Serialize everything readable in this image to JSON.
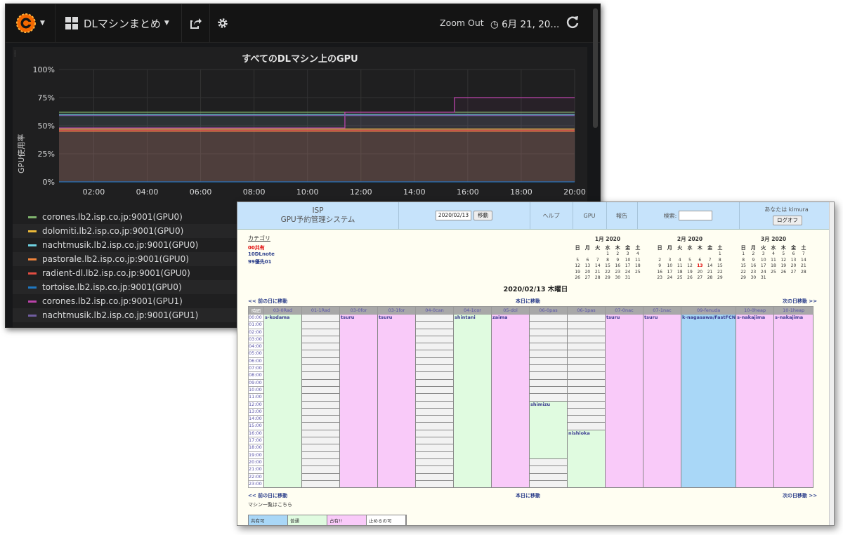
{
  "grafana": {
    "dashboard_title": "DLマシンまとめ",
    "zoom_out": "Zoom Out",
    "time_range": "6月 21, 20...",
    "icons": [
      "grafana-logo-icon",
      "dashboard-grid-icon",
      "share-icon",
      "gear-icon",
      "clock-icon",
      "refresh-icon"
    ],
    "panel": {
      "title": "すべてのDLマシン上のGPU",
      "ylabel": "GPU使用率"
    },
    "legend": [
      {
        "label": "corones.lb2.isp.co.jp:9001(GPU0)",
        "color": "#7eb26d"
      },
      {
        "label": "dolomiti.lb2.isp.co.jp:9001(GPU0)",
        "color": "#eab839"
      },
      {
        "label": "nachtmusik.lb2.isp.co.jp:9001(GPU0)",
        "color": "#6ed0e0"
      },
      {
        "label": "pastorale.lb2.isp.co.jp:9001(GPU0)",
        "color": "#ef843c"
      },
      {
        "label": "radient-dl.lb2.isp.co.jp:9001(GPU0)",
        "color": "#e24d42"
      },
      {
        "label": "tortoise.lb2.isp.co.jp:9001(GPU0)",
        "color": "#1f78c1"
      },
      {
        "label": "corones.lb2.isp.co.jp:9001(GPU1)",
        "color": "#ba43a9"
      },
      {
        "label": "nachtmusik.lb2.isp.co.jp:9001(GPU1)",
        "color": "#705da0"
      }
    ]
  },
  "chart_data": {
    "type": "line",
    "title": "すべてのDLマシン上のGPU",
    "xlabel": "",
    "ylabel": "GPU使用率",
    "x_ticks": [
      "02:00",
      "04:00",
      "06:00",
      "08:00",
      "10:00",
      "12:00",
      "14:00",
      "16:00",
      "18:00",
      "20:00"
    ],
    "y_ticks": [
      "0%",
      "25%",
      "50%",
      "75%",
      "100%"
    ],
    "ylim": [
      0,
      100
    ],
    "xlim_hours": [
      0.7,
      20
    ],
    "grid": true,
    "legend_position": "bottom",
    "series": [
      {
        "name": "corones.lb2.isp.co.jp:9001(GPU0)",
        "color": "#7eb26d",
        "points": [
          [
            0.7,
            62
          ],
          [
            20,
            62
          ]
        ]
      },
      {
        "name": "dolomiti.lb2.isp.co.jp:9001(GPU0)",
        "color": "#eab839",
        "points": [
          [
            0.7,
            47
          ],
          [
            20,
            47
          ]
        ]
      },
      {
        "name": "nachtmusik.lb2.isp.co.jp:9001(GPU0)",
        "color": "#6ed0e0",
        "points": [
          [
            0.7,
            60
          ],
          [
            20,
            60
          ]
        ]
      },
      {
        "name": "pastorale.lb2.isp.co.jp:9001(GPU0)",
        "color": "#ef843c",
        "points": [
          [
            0.7,
            45
          ],
          [
            20,
            45
          ]
        ]
      },
      {
        "name": "radient-dl.lb2.isp.co.jp:9001(GPU0)",
        "color": "#e24d42",
        "points": [
          [
            0.7,
            46
          ],
          [
            20,
            46
          ]
        ]
      },
      {
        "name": "tortoise.lb2.isp.co.jp:9001(GPU0)",
        "color": "#1f78c1",
        "points": [
          [
            0.7,
            0
          ],
          [
            20,
            0
          ]
        ]
      },
      {
        "name": "corones.lb2.isp.co.jp:9001(GPU1)",
        "color": "#ba43a9",
        "points": [
          [
            0.7,
            48
          ],
          [
            11.4,
            48
          ],
          [
            11.4,
            62
          ],
          [
            15.5,
            62
          ],
          [
            15.5,
            75
          ],
          [
            20,
            75
          ]
        ]
      },
      {
        "name": "nachtmusik.lb2.isp.co.jp:9001(GPU1)",
        "color": "#705da0",
        "points": [
          [
            0.7,
            59
          ],
          [
            20,
            59
          ]
        ]
      }
    ]
  },
  "booking": {
    "brand": {
      "line1": "ISP",
      "line2": "GPU予約管理システム"
    },
    "date_value": "2020/02/13",
    "move_button": "移動",
    "help": "ヘルプ",
    "gpu": "GPU",
    "report": "報告",
    "search_label": "検索:",
    "user_label": "あなたは kimura",
    "logoff": "ログオフ",
    "category_title": "カテゴリ",
    "categories": [
      {
        "label": "00共有",
        "color": "#e00000"
      },
      {
        "label": "10DLnote",
        "color": "#2a3d8a"
      },
      {
        "label": "99優先01",
        "color": "#2a3d8a"
      }
    ],
    "calendars": [
      {
        "title": "1月 2020",
        "days": [
          "日",
          "月",
          "火",
          "水",
          "木",
          "金",
          "土"
        ],
        "cells": [
          "",
          "",
          "",
          "1",
          "2",
          "3",
          "4",
          "5",
          "6",
          "7",
          "8",
          "9",
          "10",
          "11",
          "12",
          "13",
          "14",
          "15",
          "16",
          "17",
          "18",
          "19",
          "20",
          "21",
          "22",
          "23",
          "24",
          "25",
          "26",
          "27",
          "28",
          "29",
          "30",
          "31",
          ""
        ]
      },
      {
        "title": "2月 2020",
        "days": [
          "日",
          "月",
          "火",
          "水",
          "木",
          "金",
          "土"
        ],
        "cells": [
          "",
          "",
          "",
          "",
          "",
          "",
          "1",
          "2",
          "3",
          "4",
          "5",
          "6",
          "7",
          "8",
          "9",
          "10",
          "11",
          "12",
          "13",
          "14",
          "15",
          "16",
          "17",
          "18",
          "19",
          "20",
          "21",
          "22",
          "23",
          "24",
          "25",
          "26",
          "27",
          "28",
          "29"
        ],
        "highlight": "13"
      },
      {
        "title": "3月 2020",
        "days": [
          "日",
          "月",
          "火",
          "水",
          "木",
          "金",
          "土"
        ],
        "cells": [
          "1",
          "2",
          "3",
          "4",
          "5",
          "6",
          "7",
          "8",
          "9",
          "10",
          "11",
          "12",
          "13",
          "14",
          "15",
          "16",
          "17",
          "18",
          "19",
          "20",
          "21",
          "22",
          "23",
          "24",
          "25",
          "26",
          "27",
          "28",
          "29",
          "30",
          "31",
          "",
          "",
          "",
          ""
        ]
      }
    ],
    "day_title": "2020/02/13 木曜日",
    "prev_day": "<< 前の日に移動",
    "today": "本日に移動",
    "next_day": "次の日移動 >>",
    "time_header": "時間",
    "columns": [
      "03-0Rad",
      "01-1Rad",
      "03-0for",
      "03-1for",
      "04-0can",
      "04-1cor",
      "05-dol",
      "06-0pas",
      "06-1pas",
      "07-0nac",
      "07-1nac",
      "09-fenuda",
      "10-0heap",
      "10-1heap"
    ],
    "hours": [
      "00:00",
      "01:00",
      "02:00",
      "03:00",
      "04:00",
      "05:00",
      "06:00",
      "07:00",
      "08:00",
      "09:00",
      "10:00",
      "11:00",
      "12:00",
      "13:00",
      "14:00",
      "15:00",
      "16:00",
      "17:00",
      "18:00",
      "19:00",
      "20:00",
      "21:00",
      "22:00",
      "23:00"
    ],
    "schedule": [
      {
        "type": "block",
        "start": 0,
        "span": 24,
        "color": "g",
        "name": "s-kodama"
      },
      {
        "type": "free"
      },
      {
        "type": "block",
        "start": 0,
        "span": 24,
        "color": "p",
        "name": "tsuru"
      },
      {
        "type": "block",
        "start": 0,
        "span": 24,
        "color": "p",
        "name": "tsuru"
      },
      {
        "type": "free"
      },
      {
        "type": "block",
        "start": 0,
        "span": 24,
        "color": "g",
        "name": "shintani"
      },
      {
        "type": "block",
        "start": 0,
        "span": 24,
        "color": "p",
        "name": "zaima"
      },
      {
        "type": "mixed",
        "blocks": [
          {
            "start": 12,
            "span": 8,
            "color": "g",
            "name": "shimizu"
          }
        ]
      },
      {
        "type": "mixed",
        "blocks": [
          {
            "start": 16,
            "span": 8,
            "color": "g",
            "name": "nishioka"
          }
        ]
      },
      {
        "type": "block",
        "start": 0,
        "span": 24,
        "color": "p",
        "name": "tsuru"
      },
      {
        "type": "block",
        "start": 0,
        "span": 24,
        "color": "p",
        "name": "tsuru"
      },
      {
        "type": "block",
        "start": 0,
        "span": 24,
        "color": "b",
        "name": "k-nagasawa/FastFCN"
      },
      {
        "type": "block",
        "start": 0,
        "span": 24,
        "color": "p",
        "name": "s-nakajima"
      },
      {
        "type": "block",
        "start": 0,
        "span": 24,
        "color": "p",
        "name": "s-nakajima"
      }
    ],
    "machine_list": "マシン一覧はこちら",
    "legend": [
      {
        "label": "共有可",
        "color": "#a9d7f7"
      },
      {
        "label": "普通",
        "color": "#e0fbe0"
      },
      {
        "label": "占有!!",
        "color": "#f9caf9"
      },
      {
        "label": "止めるの可",
        "color": "#ffffff"
      }
    ]
  }
}
